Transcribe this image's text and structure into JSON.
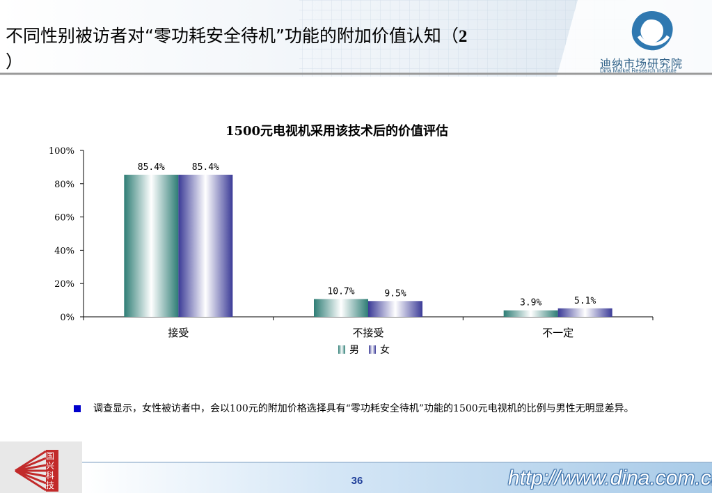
{
  "header": {
    "title_main": "不同性别被访者对“零功耗安全待机”功能的附加价值认知（",
    "title_num": "2",
    "title_tail": "）",
    "logo_name": "迪纳市场研究院",
    "logo_sub": "Dina Market Research Institute"
  },
  "chart_data": {
    "type": "bar",
    "title": "1500元电视机采用该技术后的价值评估",
    "categories": [
      "接受",
      "不接受",
      "不一定"
    ],
    "series": [
      {
        "name": "男",
        "values": [
          85.4,
          10.7,
          3.9
        ],
        "labels": [
          "85.4%",
          "10.7%",
          "3.9%"
        ],
        "color": "#2e7d75"
      },
      {
        "name": "女",
        "values": [
          85.4,
          9.5,
          5.1
        ],
        "labels": [
          "85.4%",
          "9.5%",
          "5.1%"
        ],
        "color": "#3b3b97"
      }
    ],
    "y_ticks": [
      "0%",
      "20%",
      "40%",
      "60%",
      "80%",
      "100%"
    ],
    "ylim": [
      0,
      100
    ],
    "grid": false,
    "legend": "bottom"
  },
  "note": {
    "text": "调查显示，女性被访者中，会以100元的附加价格选择具有“零功耗安全待机”功能的1500元电视机的比例与男性无明显差异。"
  },
  "footer": {
    "page": "36",
    "url": "http://www.dina.com.cn",
    "badge_text": "国兴科技"
  }
}
